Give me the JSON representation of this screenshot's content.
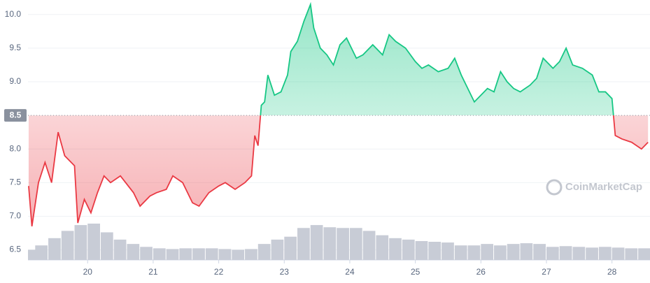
{
  "chart_data": {
    "type": "price-line",
    "watermark": "CoinMarketCap",
    "x": [
      19.1,
      19.15,
      19.25,
      19.35,
      19.45,
      19.55,
      19.65,
      19.8,
      19.85,
      19.95,
      20.05,
      20.15,
      20.25,
      20.35,
      20.5,
      20.7,
      20.8,
      20.95,
      21.05,
      21.2,
      21.3,
      21.45,
      21.6,
      21.7,
      21.85,
      22.0,
      22.1,
      22.25,
      22.4,
      22.5,
      22.55,
      22.6,
      22.65,
      22.7,
      22.75,
      22.85,
      22.95,
      23.05,
      23.1,
      23.2,
      23.3,
      23.4,
      23.45,
      23.55,
      23.65,
      23.75,
      23.85,
      23.95,
      24.1,
      24.2,
      24.35,
      24.5,
      24.6,
      24.7,
      24.85,
      25.0,
      25.1,
      25.2,
      25.35,
      25.5,
      25.6,
      25.7,
      25.8,
      25.9,
      26.0,
      26.1,
      26.2,
      26.3,
      26.4,
      26.5,
      26.6,
      26.75,
      26.85,
      26.95,
      27.1,
      27.2,
      27.3,
      27.4,
      27.55,
      27.7,
      27.8,
      27.9,
      28.0,
      28.05,
      28.15,
      28.3,
      28.45,
      28.55
    ],
    "values": [
      7.45,
      6.85,
      7.5,
      7.8,
      7.5,
      8.25,
      7.9,
      7.75,
      6.9,
      7.25,
      7.05,
      7.35,
      7.6,
      7.5,
      7.6,
      7.35,
      7.15,
      7.3,
      7.35,
      7.4,
      7.6,
      7.5,
      7.2,
      7.15,
      7.35,
      7.45,
      7.5,
      7.4,
      7.5,
      7.6,
      8.2,
      8.05,
      8.65,
      8.7,
      9.1,
      8.8,
      8.85,
      9.1,
      9.45,
      9.6,
      9.9,
      10.15,
      9.8,
      9.5,
      9.4,
      9.25,
      9.55,
      9.65,
      9.35,
      9.4,
      9.55,
      9.4,
      9.7,
      9.6,
      9.5,
      9.3,
      9.2,
      9.25,
      9.15,
      9.2,
      9.35,
      9.1,
      8.9,
      8.7,
      8.8,
      8.9,
      8.85,
      9.15,
      9.0,
      8.9,
      8.85,
      8.95,
      9.05,
      9.35,
      9.2,
      9.3,
      9.5,
      9.25,
      9.2,
      9.1,
      8.85,
      8.85,
      8.75,
      8.2,
      8.15,
      8.1,
      8.0,
      8.1
    ],
    "reference": 8.5,
    "up_color": "#16c784",
    "down_color": "#ea3943",
    "volume": {
      "color": "#c8ccd6",
      "x": [
        19.1,
        19.3,
        19.5,
        19.7,
        19.9,
        20.1,
        20.3,
        20.5,
        20.7,
        20.9,
        21.1,
        21.3,
        21.5,
        21.7,
        21.9,
        22.1,
        22.3,
        22.5,
        22.7,
        22.9,
        23.1,
        23.3,
        23.5,
        23.7,
        23.9,
        24.1,
        24.3,
        24.5,
        24.7,
        24.9,
        25.1,
        25.3,
        25.5,
        25.7,
        25.9,
        26.1,
        26.3,
        26.5,
        26.7,
        26.9,
        27.1,
        27.3,
        27.5,
        27.7,
        27.9,
        28.1,
        28.3,
        28.5
      ],
      "values": [
        14,
        20,
        30,
        40,
        48,
        50,
        38,
        28,
        22,
        18,
        16,
        15,
        16,
        16,
        16,
        15,
        14,
        15,
        22,
        28,
        32,
        44,
        48,
        45,
        44,
        44,
        40,
        34,
        30,
        28,
        26,
        25,
        24,
        20,
        20,
        22,
        20,
        22,
        23,
        22,
        18,
        19,
        18,
        17,
        18,
        17,
        16,
        16
      ]
    },
    "xlim": [
      19.09,
      28.58
    ],
    "xticks": [
      20,
      21,
      22,
      23,
      24,
      25,
      26,
      27,
      28
    ],
    "ylim": [
      6.35,
      10.216
    ],
    "yticks": [
      6.5,
      {
        "value": 7,
        "label": "7.0"
      },
      7.5,
      {
        "value": 8,
        "label": "8.0"
      },
      {
        "value": 9,
        "label": "9.0"
      },
      9.5,
      {
        "value": 10,
        "label": "10.0"
      }
    ],
    "grid": true
  }
}
